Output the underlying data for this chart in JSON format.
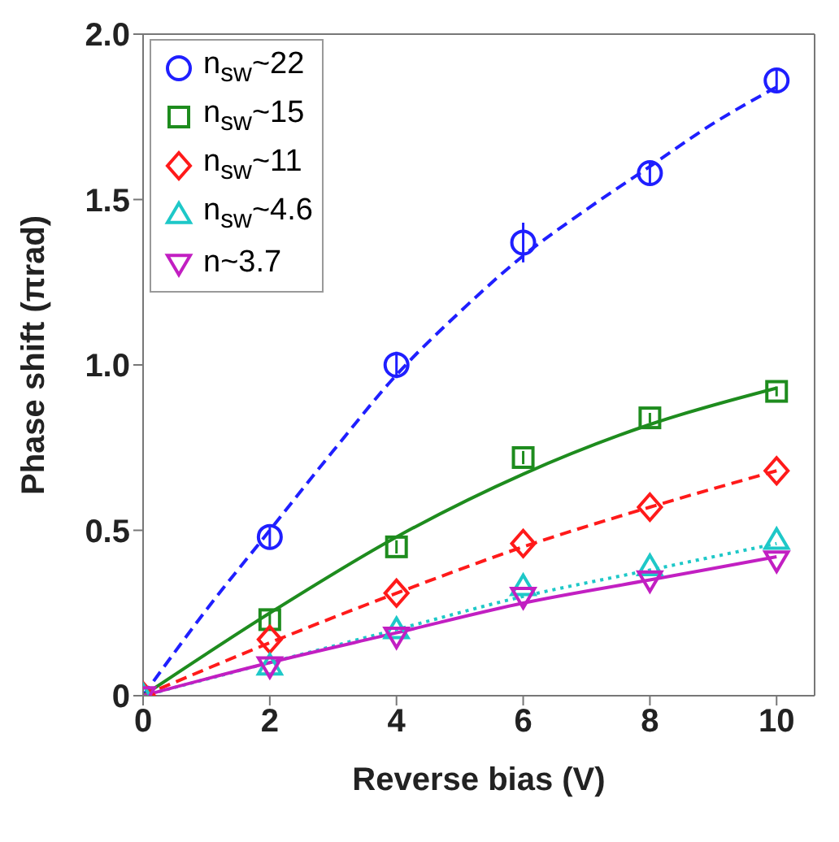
{
  "chart_data": {
    "type": "scatter",
    "xlabel": "Reverse bias (V)",
    "ylabel": "Phase shift (πrad)",
    "x": [
      0,
      2,
      4,
      6,
      8,
      10
    ],
    "xlim": [
      0,
      10.6
    ],
    "xticks": [
      0,
      2,
      4,
      6,
      8,
      10
    ],
    "ylim": [
      0,
      2
    ],
    "yticks": [
      {
        "value": 0,
        "label": "0"
      },
      0.5,
      {
        "value": 1,
        "label": "1.0"
      },
      1.5,
      {
        "value": 2,
        "label": "2.0"
      }
    ],
    "grid": false,
    "legend": "top left",
    "series": [
      {
        "name": "n$_{sw}$~22",
        "marker": "circle",
        "color": "#1f1fff",
        "values": [
          null,
          0.48,
          1.0,
          1.37,
          1.58,
          1.86
        ],
        "errors": [
          null,
          0.03,
          0.04,
          0.06,
          0.03,
          0.03
        ]
      },
      {
        "name": "n$_{sw}$~15",
        "marker": "square",
        "color": "#1e8c1e",
        "values": [
          null,
          0.23,
          0.45,
          0.72,
          0.84,
          0.92
        ],
        "errors": [
          null,
          0.02,
          0.02,
          0.02,
          0.015,
          0.015
        ]
      },
      {
        "name": "n$_{sw}$~11",
        "marker": "diamond",
        "color": "#ff1a1a",
        "values": [
          0,
          0.17,
          0.31,
          0.46,
          0.57,
          0.68
        ]
      },
      {
        "name": "n$_{sw}$~4.6",
        "marker": "triangle",
        "color": "#1ec8c8",
        "values": [
          0,
          0.09,
          0.2,
          0.33,
          0.39,
          0.47
        ]
      },
      {
        "name": "n~3.7",
        "marker": "triangle-down",
        "color": "#c21fc2",
        "values": [
          0,
          0.09,
          0.18,
          0.3,
          0.35,
          0.41
        ]
      },
      {
        "type": "line",
        "line_style": "dashed",
        "marker": "none",
        "color": "#1f1fff",
        "x": [
          0,
          1,
          2,
          3,
          4,
          5,
          6,
          7,
          8,
          9,
          10
        ],
        "values": [
          0,
          0.26,
          0.5,
          0.74,
          0.97,
          1.16,
          1.33,
          1.47,
          1.6,
          1.73,
          1.84
        ]
      },
      {
        "type": "line",
        "line_style": "solid",
        "marker": "none",
        "color": "#1e8c1e",
        "x": [
          0,
          2,
          4,
          6,
          8,
          10
        ],
        "values": [
          0,
          0.25,
          0.48,
          0.67,
          0.82,
          0.93
        ]
      },
      {
        "type": "line",
        "line_style": "dashed",
        "marker": "none",
        "color": "#ff1a1a",
        "x": [
          0,
          2,
          4,
          6,
          8,
          10
        ],
        "values": [
          0,
          0.16,
          0.31,
          0.45,
          0.57,
          0.68
        ]
      },
      {
        "type": "line",
        "line_style": "dotted",
        "marker": "none",
        "color": "#1ec8c8",
        "x": [
          0,
          2,
          4,
          6,
          8,
          10
        ],
        "values": [
          0,
          0.1,
          0.2,
          0.3,
          0.38,
          0.46
        ]
      },
      {
        "type": "line",
        "line_style": "solid",
        "marker": "none",
        "color": "#c21fc2",
        "x": [
          0,
          2,
          4,
          6,
          8,
          10
        ],
        "values": [
          0,
          0.1,
          0.19,
          0.28,
          0.35,
          0.42
        ]
      }
    ]
  }
}
